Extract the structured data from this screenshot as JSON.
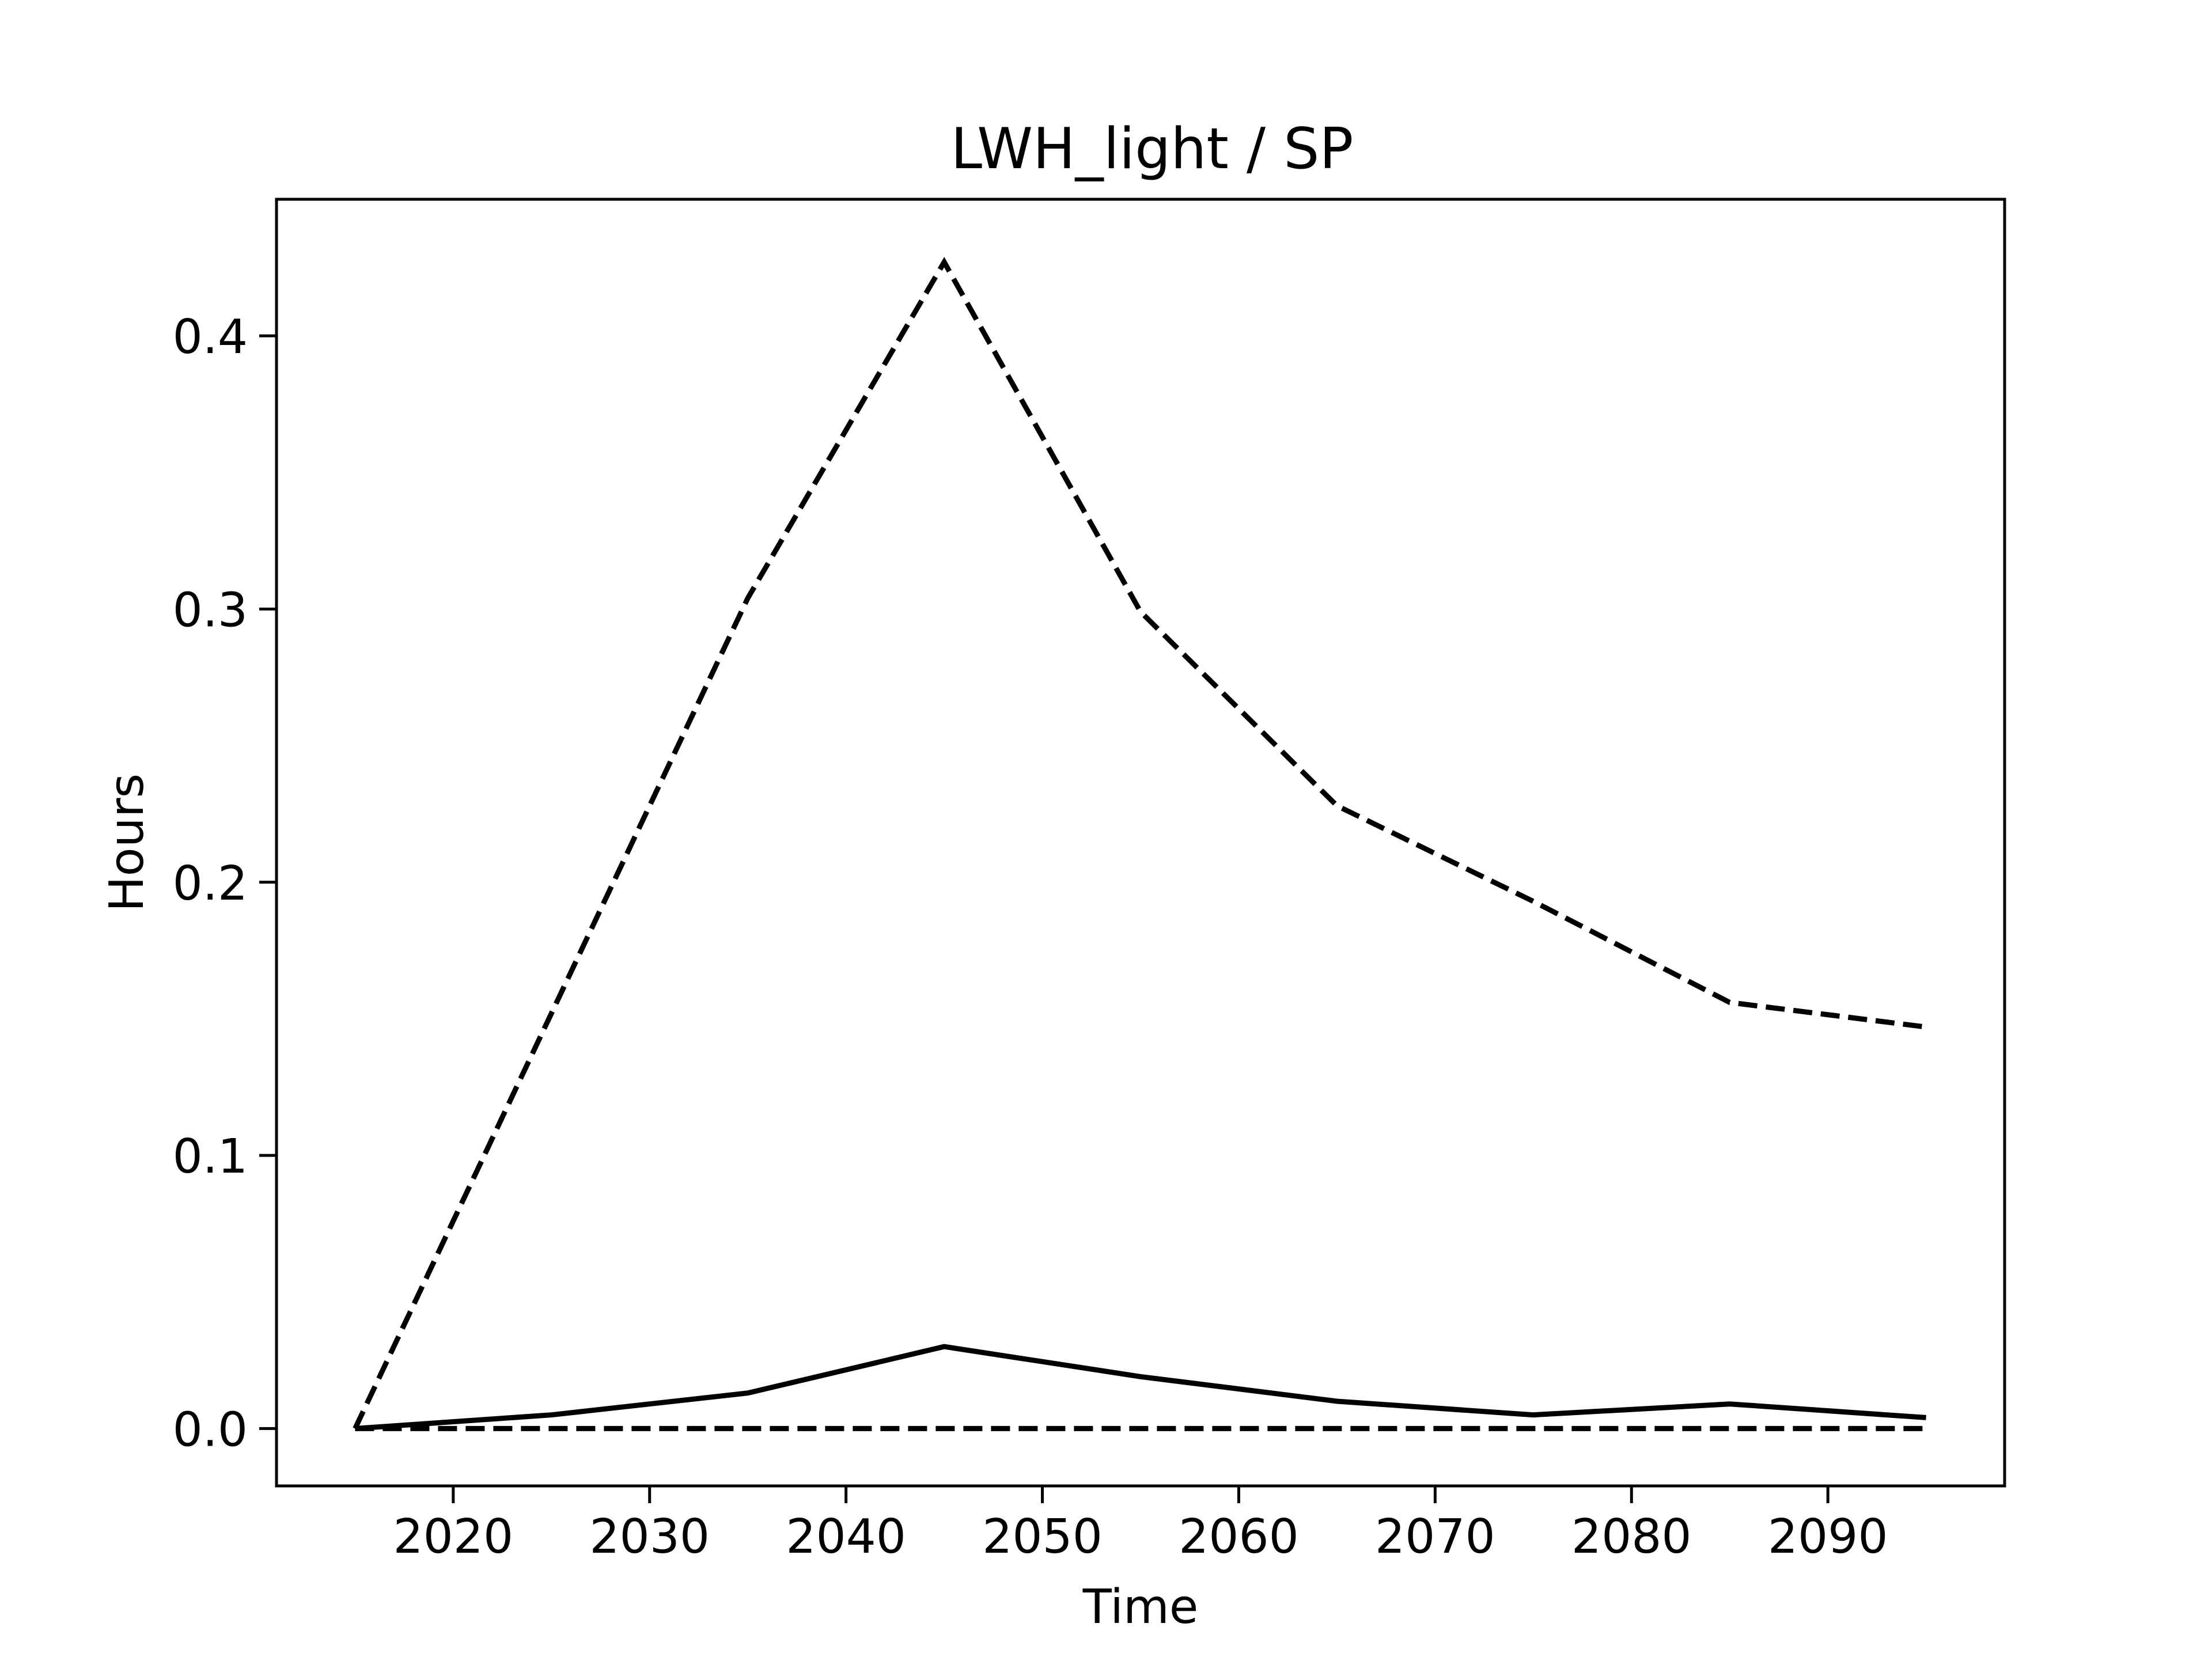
{
  "chart_data": {
    "type": "line",
    "title": "LWH_light / SP",
    "xlabel": "Time",
    "ylabel": "Hours",
    "xlim": [
      2011,
      2099
    ],
    "ylim": [
      -0.021,
      0.45
    ],
    "xticks": [
      2020,
      2030,
      2040,
      2050,
      2060,
      2070,
      2080,
      2090
    ],
    "xtick_labels": [
      "2020",
      "2030",
      "2040",
      "2050",
      "2060",
      "2070",
      "2080",
      "2090"
    ],
    "yticks": [
      0.0,
      0.1,
      0.2,
      0.3,
      0.4
    ],
    "ytick_labels": [
      "0.0",
      "0.1",
      "0.2",
      "0.3",
      "0.4"
    ],
    "grid": false,
    "legend": "none",
    "x": [
      2015,
      2025,
      2035,
      2045,
      2055,
      2065,
      2075,
      2085,
      2095
    ],
    "series": [
      {
        "style": "dashed",
        "color": "#000000",
        "values": [
          0.0,
          0.152,
          0.304,
          0.427,
          0.299,
          0.228,
          0.193,
          0.156,
          0.147
        ]
      },
      {
        "style": "solid",
        "color": "#000000",
        "values": [
          0.0,
          0.005,
          0.013,
          0.03,
          0.019,
          0.01,
          0.005,
          0.009,
          0.004
        ]
      },
      {
        "style": "dashed",
        "color": "#000000",
        "values": [
          0.0,
          0.0,
          0.0,
          0.0,
          0.0,
          0.0,
          0.0,
          0.0,
          0.0
        ]
      }
    ]
  }
}
